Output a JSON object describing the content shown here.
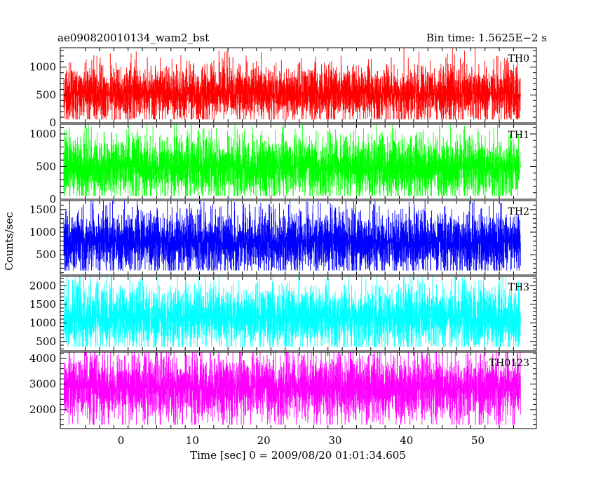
{
  "chart_data": {
    "type": "line",
    "title_left": "ae090820010134_wam2_bst",
    "title_right": "Bin time: 1.5625E−2 s",
    "xlabel": "Time [sec] 0 = 2009/08/20 01:01:34.605",
    "ylabel": "Counts/sec",
    "xlim": [
      -8.5,
      58.2
    ],
    "xticks": [
      0,
      10,
      20,
      30,
      40,
      50
    ],
    "x_range": [
      -8,
      56
    ],
    "grid": false,
    "legend": "none",
    "panels": [
      {
        "name": "TH0",
        "color": "#ff0000",
        "ylim": [
          0,
          1350
        ],
        "yticks": [
          0,
          500,
          1000
        ],
        "mean": 520,
        "spread": 150,
        "min": 60,
        "max": 1350
      },
      {
        "name": "TH1",
        "color": "#00ff00",
        "ylim": [
          0,
          1150
        ],
        "yticks": [
          0,
          500,
          1000
        ],
        "mean": 490,
        "spread": 140,
        "min": 50,
        "max": 1150
      },
      {
        "name": "TH2",
        "color": "#0000ff",
        "ylim": [
          50,
          1700
        ],
        "yticks": [
          500,
          1000,
          1500
        ],
        "mean": 780,
        "spread": 200,
        "min": 150,
        "max": 1700
      },
      {
        "name": "TH3",
        "color": "#00ffff",
        "ylim": [
          250,
          2250
        ],
        "yticks": [
          500,
          1000,
          1500,
          2000
        ],
        "mean": 1140,
        "spread": 250,
        "min": 350,
        "max": 2250
      },
      {
        "name": "TH0123",
        "color": "#ff00ff",
        "ylim": [
          1250,
          4250
        ],
        "yticks": [
          2000,
          3000,
          4000
        ],
        "mean": 2850,
        "spread": 380,
        "min": 1400,
        "max": 4250
      }
    ]
  }
}
